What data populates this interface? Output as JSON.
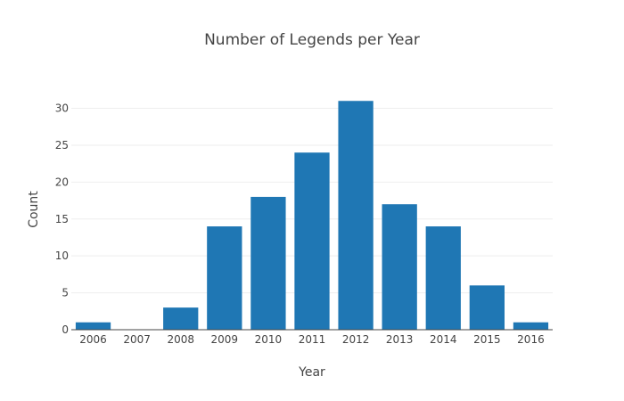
{
  "chart_data": {
    "type": "bar",
    "title": "Number of Legends per Year",
    "xlabel": "Year",
    "ylabel": "Count",
    "categories": [
      "2006",
      "2007",
      "2008",
      "2009",
      "2010",
      "2011",
      "2012",
      "2013",
      "2014",
      "2015",
      "2016"
    ],
    "values": [
      1,
      0,
      3,
      14,
      18,
      24,
      31,
      17,
      14,
      6,
      1
    ],
    "ylim": [
      0,
      32.6
    ],
    "yticks": [
      0,
      5,
      10,
      15,
      20,
      25,
      30
    ],
    "grid": true,
    "legend": "none",
    "bar_color": "#1f77b4"
  }
}
